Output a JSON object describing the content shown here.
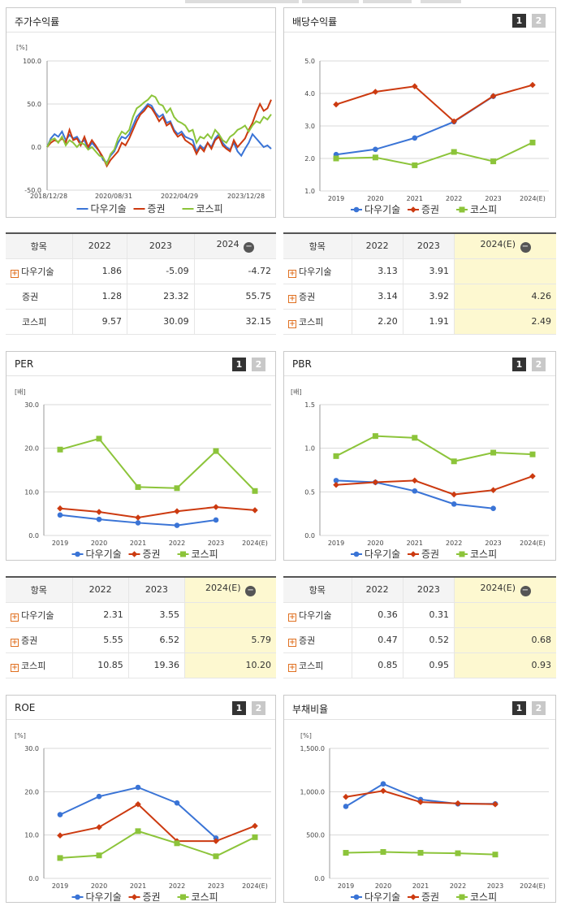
{
  "colors": {
    "company": "#3a74d6",
    "sector": "#cc3a10",
    "kospi": "#8cc43a"
  },
  "legend": {
    "company": "다우기술",
    "sector": "증권",
    "kospi": "코스피"
  },
  "pager": {
    "p1": "1",
    "p2": "2"
  },
  "panels": {
    "stock": {
      "title": "주가수익률"
    },
    "dividend": {
      "title": "배당수익률"
    },
    "per": {
      "title": "PER"
    },
    "pbr": {
      "title": "PBR"
    },
    "roe": {
      "title": "ROE"
    },
    "debt": {
      "title": "부채비율"
    }
  },
  "tables": {
    "stock": {
      "headers": [
        "항목",
        "2022",
        "2023",
        "2024"
      ],
      "rows": [
        [
          "다우기술",
          "1.86",
          "-5.09",
          "-4.72"
        ],
        [
          "증권",
          "1.28",
          "23.32",
          "55.75"
        ],
        [
          "코스피",
          "9.57",
          "30.09",
          "32.15"
        ]
      ]
    },
    "dividend": {
      "headers": [
        "항목",
        "2022",
        "2023",
        "2024(E)"
      ],
      "rows": [
        [
          "다우기술",
          "3.13",
          "3.91",
          ""
        ],
        [
          "증권",
          "3.14",
          "3.92",
          "4.26"
        ],
        [
          "코스피",
          "2.20",
          "1.91",
          "2.49"
        ]
      ]
    },
    "per": {
      "headers": [
        "항목",
        "2022",
        "2023",
        "2024(E)"
      ],
      "rows": [
        [
          "다우기술",
          "2.31",
          "3.55",
          ""
        ],
        [
          "증권",
          "5.55",
          "6.52",
          "5.79"
        ],
        [
          "코스피",
          "10.85",
          "19.36",
          "10.20"
        ]
      ]
    },
    "pbr": {
      "headers": [
        "항목",
        "2022",
        "2023",
        "2024(E)"
      ],
      "rows": [
        [
          "다우기술",
          "0.36",
          "0.31",
          ""
        ],
        [
          "증권",
          "0.47",
          "0.52",
          "0.68"
        ],
        [
          "코스피",
          "0.85",
          "0.95",
          "0.93"
        ]
      ]
    }
  },
  "chart_data": [
    {
      "id": "stock",
      "type": "line",
      "unit": "[%]",
      "ylim": [
        -50,
        100
      ],
      "yticks": [
        "100.0",
        "50.0",
        "0.0",
        "-50.0"
      ],
      "xlabels": [
        "2018/12/28",
        "2020/08/31",
        "2022/04/29",
        "2023/12/28"
      ],
      "series": [
        {
          "name": "다우기술",
          "values": [
            0,
            10,
            15,
            12,
            18,
            8,
            14,
            10,
            12,
            5,
            8,
            -2,
            5,
            0,
            -5,
            -15,
            -18,
            -10,
            -5,
            5,
            12,
            10,
            15,
            25,
            35,
            40,
            45,
            50,
            48,
            40,
            35,
            38,
            28,
            30,
            20,
            15,
            18,
            12,
            10,
            8,
            -5,
            2,
            -2,
            5,
            0,
            10,
            15,
            5,
            0,
            -3,
            5,
            -5,
            -10,
            -2,
            5,
            15,
            10,
            5,
            0,
            2,
            -2
          ]
        },
        {
          "name": "증권",
          "values": [
            0,
            5,
            8,
            6,
            10,
            5,
            20,
            8,
            10,
            2,
            12,
            0,
            8,
            2,
            -5,
            -12,
            -22,
            -15,
            -10,
            -5,
            5,
            2,
            10,
            20,
            30,
            38,
            42,
            48,
            45,
            38,
            30,
            35,
            25,
            28,
            18,
            12,
            15,
            8,
            5,
            2,
            -8,
            0,
            -5,
            5,
            -2,
            8,
            12,
            2,
            -2,
            -5,
            8,
            0,
            5,
            10,
            20,
            28,
            40,
            50,
            42,
            45,
            55
          ]
        },
        {
          "name": "코스피",
          "values": [
            0,
            8,
            10,
            5,
            12,
            2,
            8,
            5,
            0,
            5,
            3,
            -3,
            0,
            -5,
            -10,
            -12,
            -20,
            -8,
            -3,
            10,
            18,
            15,
            20,
            35,
            45,
            48,
            52,
            55,
            60,
            58,
            50,
            48,
            40,
            45,
            35,
            30,
            28,
            25,
            18,
            20,
            5,
            12,
            10,
            15,
            10,
            20,
            15,
            8,
            5,
            12,
            15,
            20,
            22,
            25,
            18,
            25,
            30,
            28,
            35,
            32,
            38
          ]
        }
      ]
    },
    {
      "id": "dividend",
      "type": "line",
      "unit": "",
      "ylim": [
        1,
        5
      ],
      "yticks": [
        "5.0",
        "4.0",
        "3.0",
        "2.0",
        "1.0"
      ],
      "categories": [
        "2019",
        "2020",
        "2021",
        "2022",
        "2023",
        "2024(E)"
      ],
      "series": [
        {
          "name": "다우기술",
          "values": [
            2.12,
            2.28,
            2.63,
            3.13,
            3.91,
            null
          ]
        },
        {
          "name": "증권",
          "values": [
            3.66,
            4.05,
            4.22,
            3.14,
            3.92,
            4.26
          ]
        },
        {
          "name": "코스피",
          "values": [
            2.0,
            2.03,
            1.79,
            2.2,
            1.91,
            2.49
          ]
        }
      ]
    },
    {
      "id": "per",
      "type": "line",
      "unit": "[배]",
      "ylim": [
        0,
        30
      ],
      "yticks": [
        "30.0",
        "20.0",
        "10.0",
        "0.0"
      ],
      "categories": [
        "2019",
        "2020",
        "2021",
        "2022",
        "2023",
        "2024(E)"
      ],
      "series": [
        {
          "name": "다우기술",
          "values": [
            4.7,
            3.7,
            2.9,
            2.31,
            3.55,
            null
          ]
        },
        {
          "name": "증권",
          "values": [
            6.2,
            5.4,
            4.1,
            5.55,
            6.52,
            5.79
          ]
        },
        {
          "name": "코스피",
          "values": [
            19.7,
            22.2,
            11.1,
            10.85,
            19.36,
            10.2
          ]
        }
      ]
    },
    {
      "id": "pbr",
      "type": "line",
      "unit": "[배]",
      "ylim": [
        0,
        1.5
      ],
      "yticks": [
        "1.5",
        "1.0",
        "0.5",
        "0.0"
      ],
      "categories": [
        "2019",
        "2020",
        "2021",
        "2022",
        "2023",
        "2024(E)"
      ],
      "series": [
        {
          "name": "다우기술",
          "values": [
            0.63,
            0.61,
            0.51,
            0.36,
            0.31,
            null
          ]
        },
        {
          "name": "증권",
          "values": [
            0.58,
            0.61,
            0.63,
            0.47,
            0.52,
            0.68
          ]
        },
        {
          "name": "코스피",
          "values": [
            0.91,
            1.14,
            1.12,
            0.85,
            0.95,
            0.93
          ]
        }
      ]
    },
    {
      "id": "roe",
      "type": "line",
      "unit": "[%]",
      "ylim": [
        0,
        30
      ],
      "yticks": [
        "30.0",
        "20.0",
        "10.0",
        "0.0"
      ],
      "categories": [
        "2019",
        "2020",
        "2021",
        "2022",
        "2023",
        "2024(E)"
      ],
      "series": [
        {
          "name": "다우기술",
          "values": [
            14.7,
            18.9,
            21.0,
            17.4,
            9.3,
            null
          ]
        },
        {
          "name": "증권",
          "values": [
            9.9,
            11.8,
            17.1,
            8.6,
            8.6,
            12.1
          ]
        },
        {
          "name": "코스피",
          "values": [
            4.7,
            5.3,
            10.9,
            8.1,
            5.1,
            9.5
          ]
        }
      ]
    },
    {
      "id": "debt",
      "type": "line",
      "unit": "[%]",
      "ylim": [
        0,
        1500
      ],
      "yticks": [
        "1,500.0",
        "1,000.0",
        "500.0",
        "0.0"
      ],
      "categories": [
        "2019",
        "2020",
        "2021",
        "2022",
        "2023",
        "2024(E)"
      ],
      "series": [
        {
          "name": "다우기술",
          "values": [
            830,
            1090,
            910,
            860,
            860,
            null
          ]
        },
        {
          "name": "증권",
          "values": [
            940,
            1010,
            880,
            865,
            855,
            null
          ]
        },
        {
          "name": "코스피",
          "values": [
            295,
            305,
            295,
            290,
            275,
            null
          ]
        }
      ]
    }
  ]
}
